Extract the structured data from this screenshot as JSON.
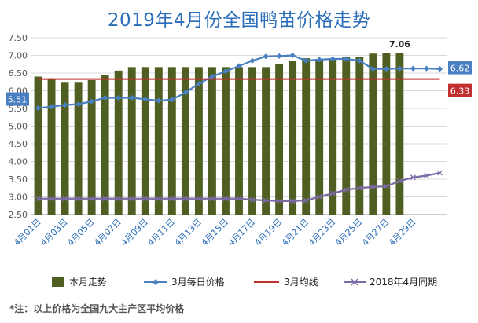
{
  "title": "2019年4月份全国鸭苗价格走势",
  "footnote": "*注：以上价格为全国九大主产区平均价格",
  "chart_data": {
    "type": "bar",
    "ylim": [
      2.5,
      7.5
    ],
    "y_ticks": [
      "2.50",
      "3.00",
      "3.50",
      "4.00",
      "4.50",
      "5.00",
      "5.50",
      "6.00",
      "6.50",
      "7.00",
      "7.50"
    ],
    "x_labels": [
      "4月01日",
      "4月03日",
      "4月05日",
      "4月07日",
      "4月09日",
      "4月11日",
      "4月13日",
      "4月15日",
      "4月17日",
      "4月19日",
      "4月21日",
      "4月23日",
      "4月25日",
      "4月27日",
      "4月29日"
    ],
    "series": [
      {
        "name": "本月走势",
        "type": "bar",
        "color": "#4f5f21",
        "values": [
          6.4,
          6.35,
          6.25,
          6.25,
          6.3,
          6.45,
          6.57,
          6.67,
          6.67,
          6.67,
          6.67,
          6.67,
          6.67,
          6.67,
          6.67,
          6.67,
          6.67,
          6.67,
          6.75,
          6.85,
          6.92,
          6.9,
          6.92,
          6.95,
          6.95,
          7.05,
          7.06,
          7.06
        ]
      },
      {
        "name": "3月每日价格",
        "type": "line",
        "color": "#4a7fc1",
        "values": [
          5.51,
          5.55,
          5.6,
          5.62,
          5.7,
          5.8,
          5.8,
          5.8,
          5.76,
          5.72,
          5.75,
          5.95,
          6.2,
          6.4,
          6.55,
          6.7,
          6.85,
          6.97,
          6.98,
          7.0,
          6.85,
          6.88,
          6.9,
          6.9,
          6.85,
          6.62,
          6.62,
          6.63,
          6.63,
          6.63,
          6.62
        ]
      },
      {
        "name": "3月均线",
        "type": "line",
        "color": "#c0302f",
        "values": [
          6.33,
          6.33,
          6.33,
          6.33,
          6.33,
          6.33,
          6.33,
          6.33,
          6.33,
          6.33,
          6.33,
          6.33,
          6.33,
          6.33,
          6.33,
          6.33,
          6.33,
          6.33,
          6.33,
          6.33,
          6.33,
          6.33,
          6.33,
          6.33,
          6.33,
          6.33,
          6.33,
          6.33,
          6.33,
          6.33,
          6.33
        ]
      },
      {
        "name": "2018年4月同期",
        "type": "line",
        "color": "#7b6aa5",
        "values": [
          2.95,
          2.95,
          2.95,
          2.95,
          2.95,
          2.95,
          2.95,
          2.95,
          2.95,
          2.95,
          2.95,
          2.95,
          2.95,
          2.95,
          2.95,
          2.95,
          2.92,
          2.9,
          2.88,
          2.88,
          2.9,
          3.0,
          3.1,
          3.2,
          3.25,
          3.28,
          3.3,
          3.45,
          3.55,
          3.6,
          3.68
        ]
      }
    ],
    "data_labels": {
      "bar_last": "7.06",
      "line_first": "5.51",
      "line_last": "6.62",
      "avg": "6.33"
    }
  }
}
